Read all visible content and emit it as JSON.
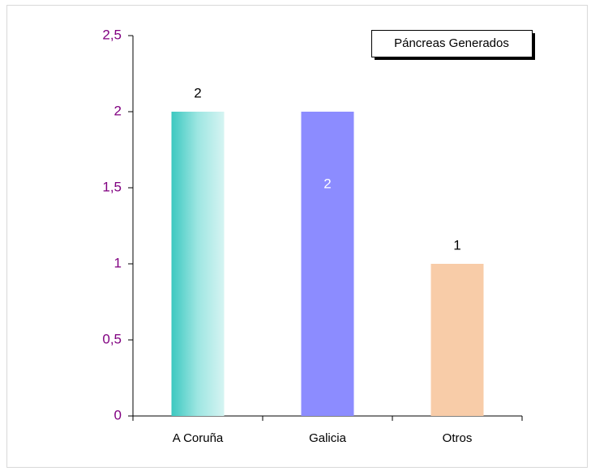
{
  "chart_data": {
    "type": "bar",
    "categories": [
      "A Coruña",
      "Galicia",
      "Otros"
    ],
    "series": [
      {
        "name": "Páncreas Generados",
        "values": [
          2,
          2,
          1
        ]
      }
    ],
    "colors": [
      "#3cc8c0",
      "#8c8cff",
      "#f8cca8"
    ],
    "ylim": [
      0,
      2.5
    ],
    "yticks": [
      0,
      {
        "value": 0.5,
        "label": "0,5"
      },
      1,
      {
        "value": 1.5,
        "label": "1,5"
      },
      2,
      {
        "value": 2.5,
        "label": "2,5"
      }
    ],
    "legend": "top-right"
  }
}
